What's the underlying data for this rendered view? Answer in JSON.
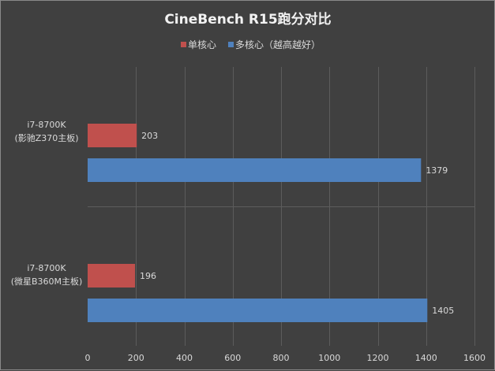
{
  "chart_data": {
    "type": "bar",
    "orientation": "horizontal",
    "title": "CineBench R15跑分对比",
    "categories": [
      [
        "i7-8700K",
        "(影驰Z370主板)"
      ],
      [
        "i7-8700K",
        "(微星B360M主板)"
      ]
    ],
    "series": [
      {
        "name": "单核心",
        "color": "#c0504d",
        "values": [
          203,
          196
        ]
      },
      {
        "name": "多核心（越高越好）",
        "color": "#4f81bd",
        "values": [
          1379,
          1405
        ]
      }
    ],
    "xlim": [
      0,
      1600
    ],
    "xticks": [
      0,
      200,
      400,
      600,
      800,
      1000,
      1200,
      1400,
      1600
    ],
    "grid": "vertical",
    "legend_position": "top",
    "background": "#404040"
  }
}
